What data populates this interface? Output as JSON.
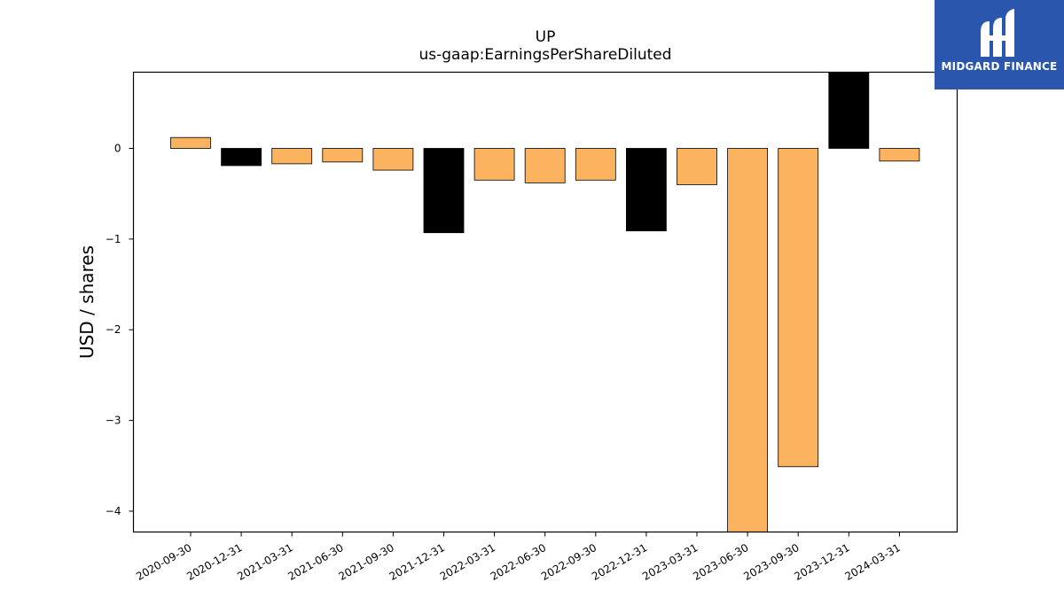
{
  "logo": {
    "text": "MIDGARD FINANCE",
    "bg_color": "#2b56ad",
    "icon": "midgard-logo-icon"
  },
  "chart_data": {
    "type": "bar",
    "title": "UP",
    "subtitle": "us-gaap:EarningsPerShareDiluted",
    "xlabel": "",
    "ylabel": "USD / shares",
    "ylim": [
      -4.23,
      0.84
    ],
    "yticks": [
      0,
      -1,
      -2,
      -3,
      -4
    ],
    "ytick_labels": [
      "0",
      "−1",
      "−2",
      "−3",
      "−4"
    ],
    "grid": false,
    "categories": [
      "2020-09-30",
      "2020-12-31",
      "2021-03-31",
      "2021-06-30",
      "2021-09-30",
      "2021-12-31",
      "2022-03-31",
      "2022-06-30",
      "2022-09-30",
      "2022-12-31",
      "2023-03-31",
      "2023-06-30",
      "2023-09-30",
      "2023-12-31",
      "2024-03-31"
    ],
    "values": [
      0.12,
      -0.19,
      -0.17,
      -0.15,
      -0.24,
      -0.93,
      -0.35,
      -0.38,
      -0.35,
      -0.91,
      -0.4,
      -4.23,
      -3.51,
      0.84,
      -0.14
    ],
    "colors": [
      "#fbb360",
      "#000000",
      "#fbb360",
      "#fbb360",
      "#fbb360",
      "#000000",
      "#fbb360",
      "#fbb360",
      "#fbb360",
      "#000000",
      "#fbb360",
      "#fbb360",
      "#fbb360",
      "#000000",
      "#fbb360"
    ]
  }
}
